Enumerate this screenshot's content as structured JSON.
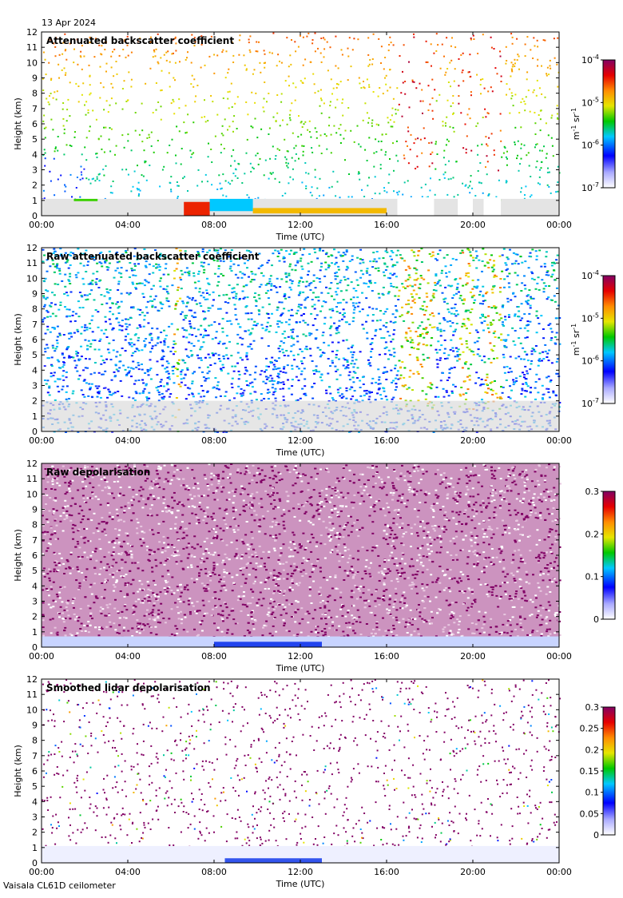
{
  "header": {
    "date": "13 Apr 2024"
  },
  "footer": {
    "instrument": "Vaisala CL61D ceilometer"
  },
  "chart_data": [
    {
      "type": "heatmap",
      "title": "Attenuated backscatter coefficient",
      "xlabel": "Time (UTC)",
      "ylabel": "Height (km)",
      "xlim": [
        0,
        24
      ],
      "ylim": [
        0,
        12
      ],
      "x_ticks": [
        "00:00",
        "04:00",
        "08:00",
        "12:00",
        "16:00",
        "20:00",
        "00:00"
      ],
      "y_ticks": [
        "0",
        "1",
        "2",
        "3",
        "4",
        "5",
        "6",
        "7",
        "8",
        "9",
        "10",
        "11",
        "12"
      ],
      "colorbar": {
        "scale": "log",
        "labels": [
          "10",
          "10",
          "10",
          "10"
        ],
        "exponents": [
          "-7",
          "-6",
          "-5",
          "-4"
        ],
        "values": [
          1e-07,
          1e-06,
          1e-05,
          0.0001
        ],
        "unit": "m",
        "unit_exp1": "-1",
        "unit_mid": " sr",
        "unit_exp2": "-1"
      },
      "features": {
        "cloud_layer_km": 1.0,
        "boundary_layer_top_km": 0.4,
        "noise": "sparse",
        "rain_blocks_hours": [
          [
            16.5,
            18.2
          ],
          [
            19.3,
            20.0
          ],
          [
            20.5,
            21.3
          ]
        ]
      }
    },
    {
      "type": "heatmap",
      "title": "Raw attenuated backscatter coefficient",
      "xlabel": "Time (UTC)",
      "ylabel": "Height (km)",
      "xlim": [
        0,
        24
      ],
      "ylim": [
        0,
        12
      ],
      "x_ticks": [
        "00:00",
        "04:00",
        "08:00",
        "12:00",
        "16:00",
        "20:00",
        "00:00"
      ],
      "y_ticks": [
        "0",
        "1",
        "2",
        "3",
        "4",
        "5",
        "6",
        "7",
        "8",
        "9",
        "10",
        "11",
        "12"
      ],
      "colorbar": {
        "scale": "log",
        "labels": [
          "10",
          "10",
          "10",
          "10"
        ],
        "exponents": [
          "-7",
          "-6",
          "-5",
          "-4"
        ],
        "values": [
          1e-07,
          1e-06,
          1e-05,
          0.0001
        ],
        "unit": "m",
        "unit_exp1": "-1",
        "unit_mid": " sr",
        "unit_exp2": "-1"
      },
      "features": {
        "noise": "dense",
        "rain_blocks_hours": [
          [
            16.5,
            18.2
          ],
          [
            19.3,
            20.0
          ],
          [
            20.5,
            21.3
          ]
        ]
      }
    },
    {
      "type": "heatmap",
      "title": "Raw depolarisation",
      "xlabel": "Time (UTC)",
      "ylabel": "Height (km)",
      "xlim": [
        0,
        24
      ],
      "ylim": [
        0,
        12
      ],
      "x_ticks": [
        "00:00",
        "04:00",
        "08:00",
        "12:00",
        "16:00",
        "20:00",
        "00:00"
      ],
      "y_ticks": [
        "0",
        "1",
        "2",
        "3",
        "4",
        "5",
        "6",
        "7",
        "8",
        "9",
        "10",
        "11",
        "12"
      ],
      "colorbar": {
        "scale": "linear",
        "labels": [
          "0",
          "0.1",
          "0.2",
          "0.3"
        ],
        "values": [
          0,
          0.1,
          0.2,
          0.3
        ]
      },
      "features": {
        "noise": "saturated"
      }
    },
    {
      "type": "heatmap",
      "title": "Smoothed lidar depolarisation",
      "xlabel": "Time (UTC)",
      "ylabel": "Height (km)",
      "xlim": [
        0,
        24
      ],
      "ylim": [
        0,
        12
      ],
      "x_ticks": [
        "00:00",
        "04:00",
        "08:00",
        "12:00",
        "16:00",
        "20:00",
        "00:00"
      ],
      "y_ticks": [
        "0",
        "1",
        "2",
        "3",
        "4",
        "5",
        "6",
        "7",
        "8",
        "9",
        "10",
        "11",
        "12"
      ],
      "colorbar": {
        "scale": "linear",
        "labels": [
          "0",
          "0.05",
          "0.1",
          "0.15",
          "0.2",
          "0.25",
          "0.3"
        ],
        "values": [
          0,
          0.05,
          0.1,
          0.15,
          0.2,
          0.25,
          0.3
        ]
      },
      "features": {
        "noise": "sparse-purple"
      }
    }
  ]
}
